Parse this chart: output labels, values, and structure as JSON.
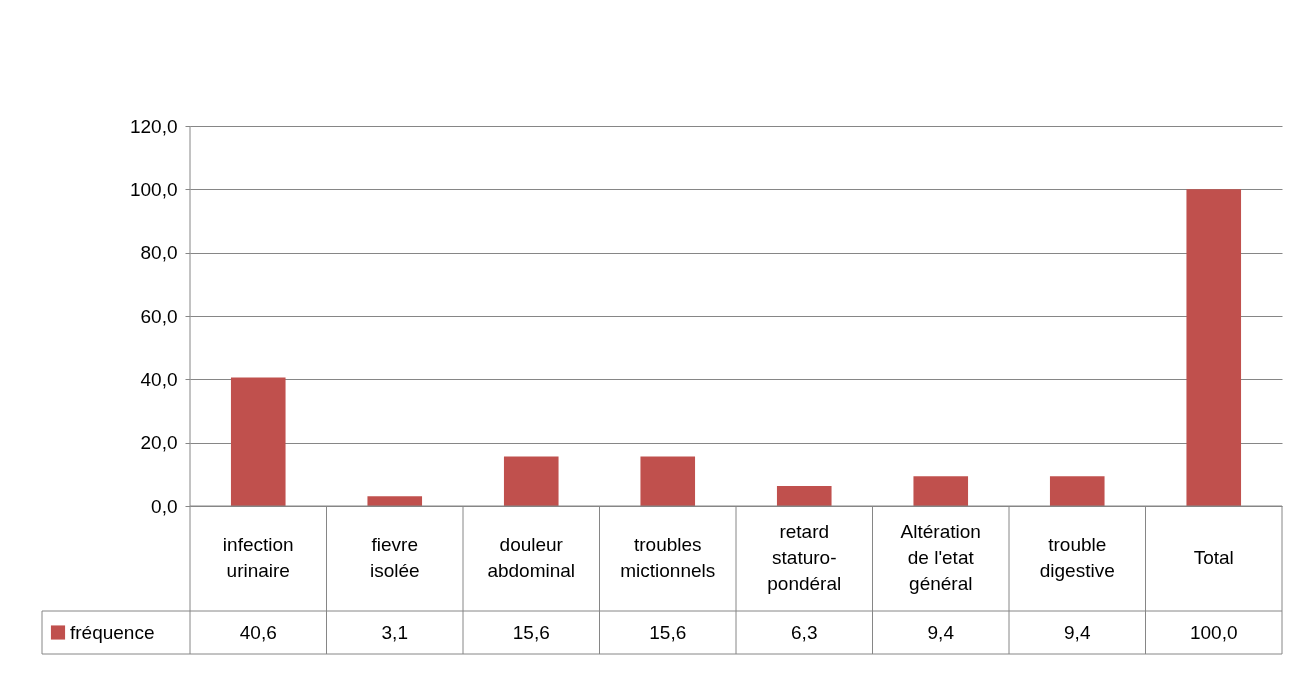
{
  "chart_data": {
    "type": "bar",
    "categories": [
      "infection urinaire",
      "fievre isolée",
      "douleur abdominal",
      "troubles mictionnels",
      "retard staturo-pondéral",
      "Altération de l'etat général",
      "trouble digestive",
      "Total"
    ],
    "series": [
      {
        "name": "fréquence",
        "color": "#c0504d",
        "values": [
          40.6,
          3.1,
          15.6,
          15.6,
          6.3,
          9.4,
          9.4,
          100.0
        ],
        "value_labels": [
          "40,6",
          "3,1",
          "15,6",
          "15,6",
          "6,3",
          "9,4",
          "9,4",
          "100,0"
        ]
      }
    ],
    "ylim": [
      0,
      120
    ],
    "yticks": [
      {
        "value": 0,
        "label": "0,0"
      },
      {
        "value": 20,
        "label": "20,0"
      },
      {
        "value": 40,
        "label": "40,0"
      },
      {
        "value": 60,
        "label": "60,0"
      },
      {
        "value": 80,
        "label": "80,0"
      },
      {
        "value": 100,
        "label": "100,0"
      },
      {
        "value": 120,
        "label": "120,0"
      }
    ],
    "grid": "y",
    "legend": "bottom left"
  }
}
